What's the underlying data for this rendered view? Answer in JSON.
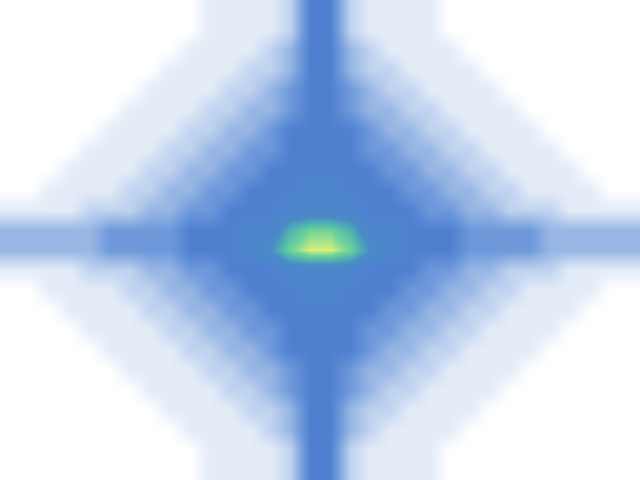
{
  "chart_data": {
    "type": "heatmap",
    "cells": [
      [
        0,
        0,
        0,
        0,
        0,
        0,
        0,
        0,
        0,
        0,
        1,
        1,
        1,
        1,
        2,
        5,
        5,
        2,
        1,
        1,
        1,
        1,
        0,
        0,
        0,
        0,
        0,
        0,
        0,
        0,
        0,
        0
      ],
      [
        0,
        0,
        0,
        0,
        0,
        0,
        0,
        0,
        0,
        0,
        1,
        1,
        1,
        1,
        2,
        5,
        5,
        2,
        1,
        1,
        1,
        1,
        0,
        0,
        0,
        0,
        0,
        0,
        0,
        0,
        0,
        0
      ],
      [
        0,
        0,
        0,
        0,
        0,
        0,
        0,
        0,
        0,
        1,
        1,
        1,
        1,
        2,
        3,
        5,
        5,
        3,
        2,
        1,
        1,
        1,
        1,
        0,
        0,
        0,
        0,
        0,
        0,
        0,
        0,
        0
      ],
      [
        0,
        0,
        0,
        0,
        0,
        0,
        0,
        0,
        1,
        1,
        1,
        1,
        2,
        2,
        3,
        5,
        5,
        3,
        2,
        2,
        1,
        1,
        1,
        1,
        0,
        0,
        0,
        0,
        0,
        0,
        0,
        0
      ],
      [
        0,
        0,
        0,
        0,
        0,
        0,
        0,
        1,
        1,
        1,
        1,
        2,
        2,
        3,
        4,
        5,
        5,
        4,
        3,
        2,
        2,
        1,
        1,
        1,
        1,
        0,
        0,
        0,
        0,
        0,
        0,
        0
      ],
      [
        0,
        0,
        0,
        0,
        0,
        0,
        1,
        1,
        1,
        1,
        2,
        2,
        3,
        3,
        4,
        5,
        5,
        4,
        3,
        3,
        2,
        2,
        1,
        1,
        1,
        1,
        0,
        0,
        0,
        0,
        0,
        0
      ],
      [
        0,
        0,
        0,
        0,
        0,
        1,
        1,
        1,
        1,
        2,
        2,
        3,
        3,
        4,
        5,
        5,
        5,
        5,
        4,
        3,
        3,
        2,
        2,
        1,
        1,
        1,
        1,
        0,
        0,
        0,
        0,
        0
      ],
      [
        0,
        0,
        0,
        0,
        1,
        1,
        1,
        1,
        2,
        2,
        3,
        3,
        4,
        4,
        5,
        5,
        5,
        5,
        4,
        4,
        3,
        3,
        2,
        2,
        1,
        1,
        1,
        1,
        0,
        0,
        0,
        0
      ],
      [
        0,
        0,
        0,
        1,
        1,
        1,
        1,
        2,
        2,
        3,
        3,
        4,
        4,
        5,
        5,
        5,
        5,
        5,
        5,
        4,
        4,
        3,
        3,
        2,
        2,
        1,
        1,
        1,
        1,
        0,
        0,
        0
      ],
      [
        0,
        0,
        1,
        1,
        1,
        1,
        2,
        2,
        3,
        3,
        4,
        4,
        5,
        5,
        5,
        6,
        6,
        5,
        5,
        5,
        4,
        4,
        3,
        3,
        2,
        2,
        1,
        1,
        1,
        1,
        0,
        0
      ],
      [
        1,
        1,
        1,
        1,
        2,
        2,
        2,
        3,
        3,
        4,
        4,
        5,
        5,
        5,
        6,
        6,
        6,
        6,
        5,
        5,
        5,
        4,
        4,
        3,
        3,
        2,
        2,
        2,
        1,
        1,
        1,
        1
      ],
      [
        3,
        3,
        3,
        3,
        3,
        4,
        4,
        4,
        4,
        5,
        5,
        5,
        6,
        6,
        8,
        9,
        9,
        8,
        6,
        6,
        5,
        5,
        5,
        4,
        4,
        4,
        4,
        3,
        3,
        3,
        3,
        3
      ],
      [
        3,
        3,
        3,
        3,
        3,
        4,
        4,
        4,
        4,
        5,
        5,
        5,
        6,
        7,
        9,
        10,
        10,
        9,
        7,
        6,
        5,
        5,
        5,
        4,
        4,
        4,
        4,
        3,
        3,
        3,
        3,
        3
      ],
      [
        1,
        1,
        1,
        1,
        2,
        2,
        2,
        3,
        3,
        4,
        4,
        5,
        5,
        5,
        6,
        6,
        6,
        6,
        5,
        5,
        5,
        4,
        4,
        3,
        3,
        2,
        2,
        2,
        1,
        1,
        1,
        1
      ],
      [
        0,
        0,
        1,
        1,
        1,
        1,
        2,
        2,
        3,
        3,
        4,
        4,
        5,
        5,
        5,
        6,
        6,
        5,
        5,
        5,
        4,
        4,
        3,
        3,
        2,
        2,
        1,
        1,
        1,
        1,
        0,
        0
      ],
      [
        0,
        0,
        0,
        1,
        1,
        1,
        1,
        2,
        2,
        3,
        3,
        4,
        4,
        5,
        5,
        5,
        5,
        5,
        5,
        4,
        4,
        3,
        3,
        2,
        2,
        1,
        1,
        1,
        1,
        0,
        0,
        0
      ],
      [
        0,
        0,
        0,
        0,
        1,
        1,
        1,
        1,
        2,
        2,
        3,
        3,
        4,
        4,
        5,
        5,
        5,
        5,
        4,
        4,
        3,
        3,
        2,
        2,
        1,
        1,
        1,
        1,
        0,
        0,
        0,
        0
      ],
      [
        0,
        0,
        0,
        0,
        0,
        1,
        1,
        1,
        1,
        2,
        2,
        3,
        3,
        4,
        5,
        5,
        5,
        5,
        4,
        3,
        3,
        2,
        2,
        1,
        1,
        1,
        1,
        0,
        0,
        0,
        0,
        0
      ],
      [
        0,
        0,
        0,
        0,
        0,
        0,
        1,
        1,
        1,
        1,
        2,
        2,
        3,
        3,
        4,
        5,
        5,
        4,
        3,
        3,
        2,
        2,
        1,
        1,
        1,
        1,
        0,
        0,
        0,
        0,
        0,
        0
      ],
      [
        0,
        0,
        0,
        0,
        0,
        0,
        0,
        1,
        1,
        1,
        1,
        2,
        2,
        3,
        4,
        5,
        5,
        4,
        3,
        2,
        2,
        1,
        1,
        1,
        1,
        0,
        0,
        0,
        0,
        0,
        0,
        0
      ],
      [
        0,
        0,
        0,
        0,
        0,
        0,
        0,
        0,
        1,
        1,
        1,
        1,
        2,
        2,
        3,
        5,
        5,
        3,
        2,
        2,
        1,
        1,
        1,
        1,
        0,
        0,
        0,
        0,
        0,
        0,
        0,
        0
      ],
      [
        0,
        0,
        0,
        0,
        0,
        0,
        0,
        0,
        0,
        1,
        1,
        1,
        1,
        2,
        3,
        5,
        5,
        3,
        2,
        1,
        1,
        1,
        1,
        0,
        0,
        0,
        0,
        0,
        0,
        0,
        0,
        0
      ],
      [
        0,
        0,
        0,
        0,
        0,
        0,
        0,
        0,
        0,
        0,
        1,
        1,
        1,
        1,
        2,
        5,
        5,
        2,
        1,
        1,
        1,
        1,
        0,
        0,
        0,
        0,
        0,
        0,
        0,
        0,
        0,
        0
      ],
      [
        0,
        0,
        0,
        0,
        0,
        0,
        0,
        0,
        0,
        0,
        1,
        1,
        1,
        1,
        2,
        5,
        5,
        2,
        1,
        1,
        1,
        1,
        0,
        0,
        0,
        0,
        0,
        0,
        0,
        0,
        0,
        0
      ]
    ],
    "color_range": [
      0,
      10
    ],
    "tick_labels": false
  }
}
